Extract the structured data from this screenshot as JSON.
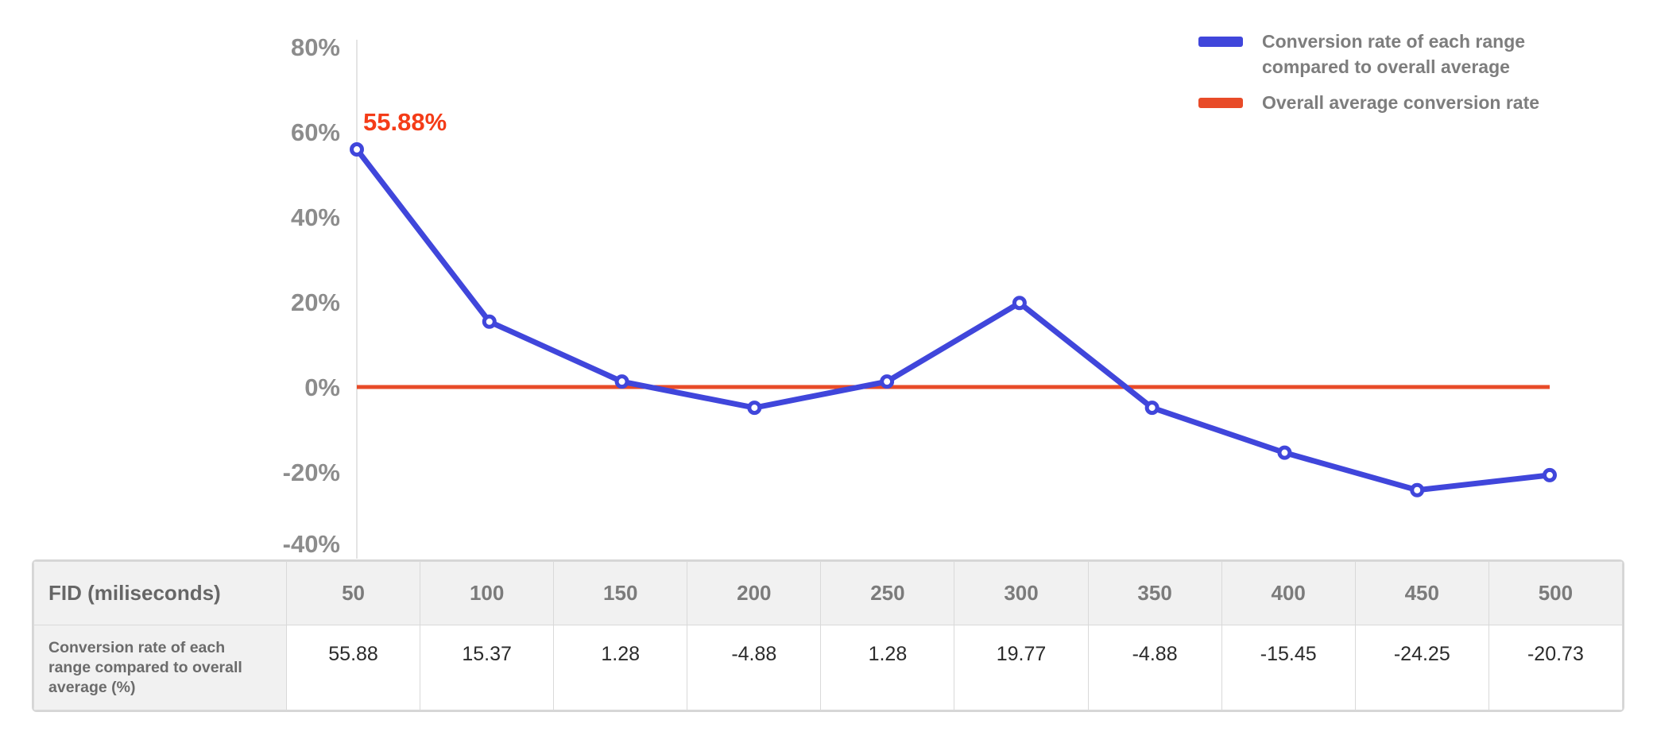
{
  "chart_data": {
    "type": "line",
    "title": "",
    "xlabel": "FID (miliseconds)",
    "ylabel": "",
    "x": [
      50,
      100,
      150,
      200,
      250,
      300,
      350,
      400,
      450,
      500
    ],
    "series": [
      {
        "name": "Conversion rate of each range compared to overall average",
        "values": [
          55.88,
          15.37,
          1.28,
          -4.88,
          1.28,
          19.77,
          -4.88,
          -15.45,
          -24.25,
          -20.73
        ],
        "color": "#4046DB",
        "marker": "open-circle"
      }
    ],
    "average_line": {
      "name": "Overall average conversion rate",
      "value": 0,
      "color": "#E84B28"
    },
    "annotation": {
      "text": "55.88%",
      "attached_to_x": 50,
      "color": "#F43C18"
    },
    "y_ticks": [
      "80%",
      "60%",
      "40%",
      "20%",
      "0%",
      "-20%",
      "-40%"
    ],
    "ylim": [
      -40,
      80
    ],
    "grid": false,
    "legend_position": "top-right"
  },
  "legend": {
    "series_label": "Conversion rate of each range compared to overall average",
    "average_label": "Overall average conversion rate"
  },
  "table": {
    "row_header_fid": "FID (miliseconds)",
    "row_header_rate": "Conversion rate of each range compared to overall average (%)",
    "fid_values": [
      "50",
      "100",
      "150",
      "200",
      "250",
      "300",
      "350",
      "400",
      "450",
      "500"
    ],
    "rate_values": [
      "55.88",
      "15.37",
      "1.28",
      "-4.88",
      "1.28",
      "19.77",
      "-4.88",
      "-15.45",
      "-24.25",
      "-20.73"
    ]
  },
  "colors": {
    "series_blue": "#4046DB",
    "average_red": "#E84B28",
    "annotation_red": "#F43C18",
    "axis_label_gray": "#8C8C8C",
    "legend_text_gray": "#7D7D7D",
    "axis_line_gray": "#E4E4E4",
    "table_header_bg": "#F1F1F1",
    "table_border_gray": "#D6D6D6"
  }
}
